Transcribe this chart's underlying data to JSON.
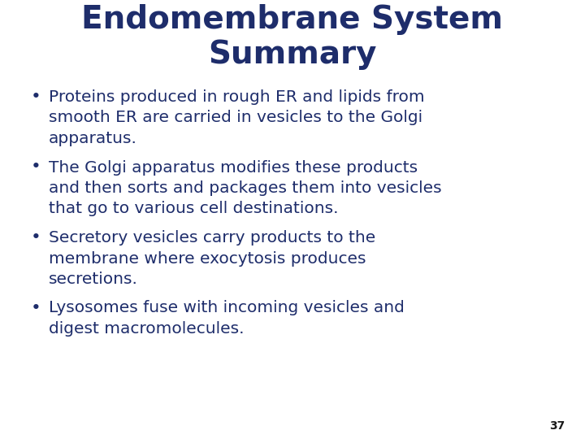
{
  "title_line1": "Endomembrane System",
  "title_line2": "Summary",
  "title_color": "#1e2d6b",
  "title_fontsize": 28,
  "title_fontweight": "bold",
  "bullet_color": "#1e2d6b",
  "bullet_fontsize": 14.5,
  "background_color": "#ffffff",
  "page_number": "37",
  "bullet_lines": [
    [
      "Proteins produced in rough ER and lipids from",
      "smooth ER are carried in vesicles to the Golgi",
      "apparatus."
    ],
    [
      "The Golgi apparatus modifies these products",
      "and then sorts and packages them into vesicles",
      "that go to various cell destinations."
    ],
    [
      "Secretory vesicles carry products to the",
      "membrane where exocytosis produces",
      "secretions."
    ],
    [
      "Lysosomes fuse with incoming vesicles and",
      "digest macromolecules."
    ]
  ]
}
